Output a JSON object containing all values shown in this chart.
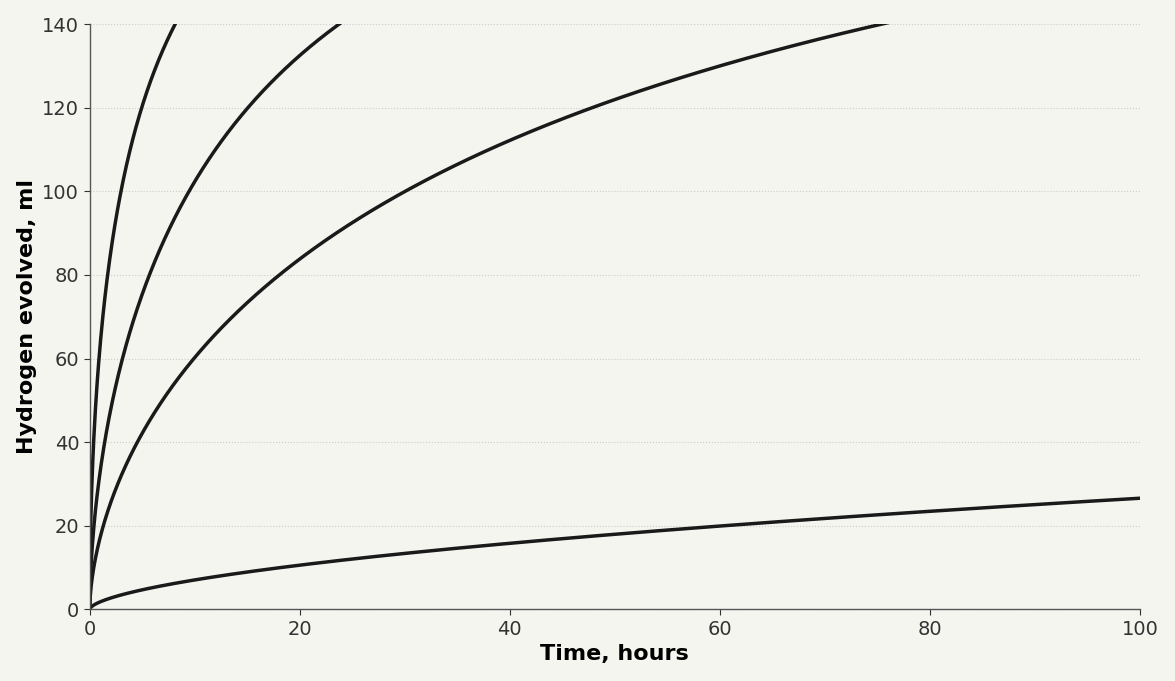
{
  "title": "",
  "xlabel": "Time, hours",
  "ylabel": "Hydrogen evolved, ml",
  "xlim": [
    0,
    100
  ],
  "ylim": [
    0,
    140
  ],
  "xticks": [
    0,
    20,
    40,
    60,
    80,
    100
  ],
  "yticks": [
    0,
    20,
    40,
    60,
    80,
    100,
    120,
    140
  ],
  "curves": [
    {
      "A": 200,
      "k": 0.38,
      "n": 0.55,
      "color": "#1a1a1a",
      "lw": 2.5
    },
    {
      "A": 200,
      "k": 0.18,
      "n": 0.6,
      "color": "#1a1a1a",
      "lw": 2.5
    },
    {
      "A": 200,
      "k": 0.09,
      "n": 0.6,
      "color": "#1a1a1a",
      "lw": 2.5
    },
    {
      "A": 200,
      "k": 0.009,
      "n": 0.6,
      "color": "#1a1a1a",
      "lw": 2.5
    }
  ],
  "grid_color": "#bbbbbb",
  "grid_alpha": 0.7,
  "background_color": "#f5f5f0",
  "tick_fontsize": 14,
  "label_fontsize": 16,
  "fig_width": 11.75,
  "fig_height": 6.81,
  "dpi": 100
}
